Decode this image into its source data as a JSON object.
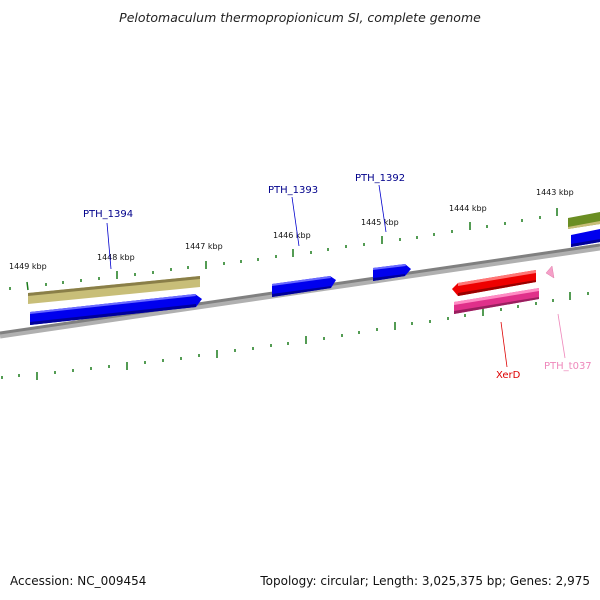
{
  "title": "Pelotomaculum thermopropionicum SI, complete genome",
  "footer": {
    "accession": "Accession: NC_009454",
    "summary": "Topology: circular; Length: 3,025,375 bp; Genes: 2,975"
  },
  "colors": {
    "backbone": "#808080",
    "tick": "#1a7a1a",
    "blue_gene": "#0000ee",
    "olive_gene": "#c8be78",
    "dark_olive_gene": "#6b8e23",
    "red_gene": "#ee0000",
    "pink_gene": "#e0308a",
    "trna": "#f5a0c8",
    "label_blue": "#00008b",
    "label_red": "#dd0000",
    "label_pink": "#ee88bb"
  },
  "scale_labels": [
    "1449 kbp",
    "1448 kbp",
    "1447 kbp",
    "1446 kbp",
    "1445 kbp",
    "1444 kbp",
    "1443 kbp"
  ],
  "gene_labels": [
    {
      "name": "PTH_1394",
      "color": "label_blue"
    },
    {
      "name": "PTH_1393",
      "color": "label_blue"
    },
    {
      "name": "PTH_1392",
      "color": "label_blue"
    },
    {
      "name": "XerD",
      "color": "label_red"
    },
    {
      "name": "PTH_t037",
      "color": "label_pink"
    }
  ],
  "features": [
    {
      "id": "olive-gene-left",
      "color": "olive_gene"
    },
    {
      "id": "blue-gene-left",
      "color": "blue_gene"
    },
    {
      "id": "blue-gene-PTH_1393",
      "color": "blue_gene"
    },
    {
      "id": "blue-gene-PTH_1392",
      "color": "blue_gene"
    },
    {
      "id": "red-gene-XerD",
      "color": "red_gene"
    },
    {
      "id": "pink-gene",
      "color": "pink_gene"
    },
    {
      "id": "trna-PTH_t037",
      "color": "trna"
    },
    {
      "id": "dark-olive-gene-right",
      "color": "dark_olive_gene"
    },
    {
      "id": "blue-gene-right",
      "color": "blue_gene"
    }
  ]
}
